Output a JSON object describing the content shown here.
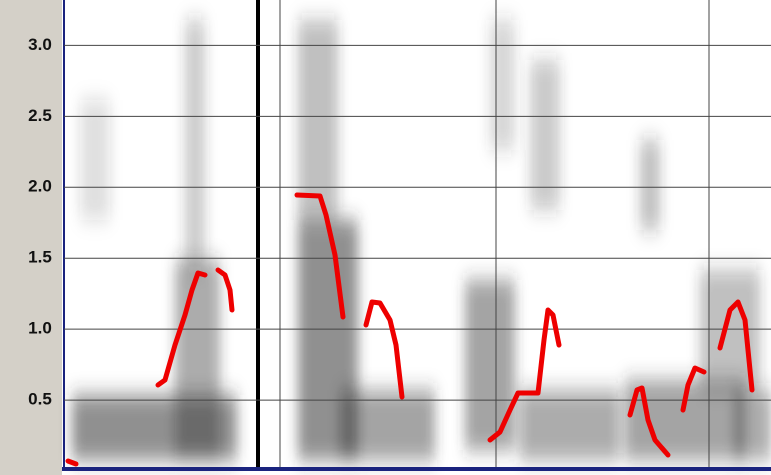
{
  "chart_data": {
    "type": "spectrogram",
    "ylim": [
      0,
      3.32
    ],
    "yticks": [
      0.5,
      {
        "value": 1,
        "label": "1.0"
      },
      1.5,
      {
        "value": 2,
        "label": "2.0"
      },
      2.5,
      {
        "value": 3,
        "label": "3.0"
      }
    ],
    "grid": true
  }
}
